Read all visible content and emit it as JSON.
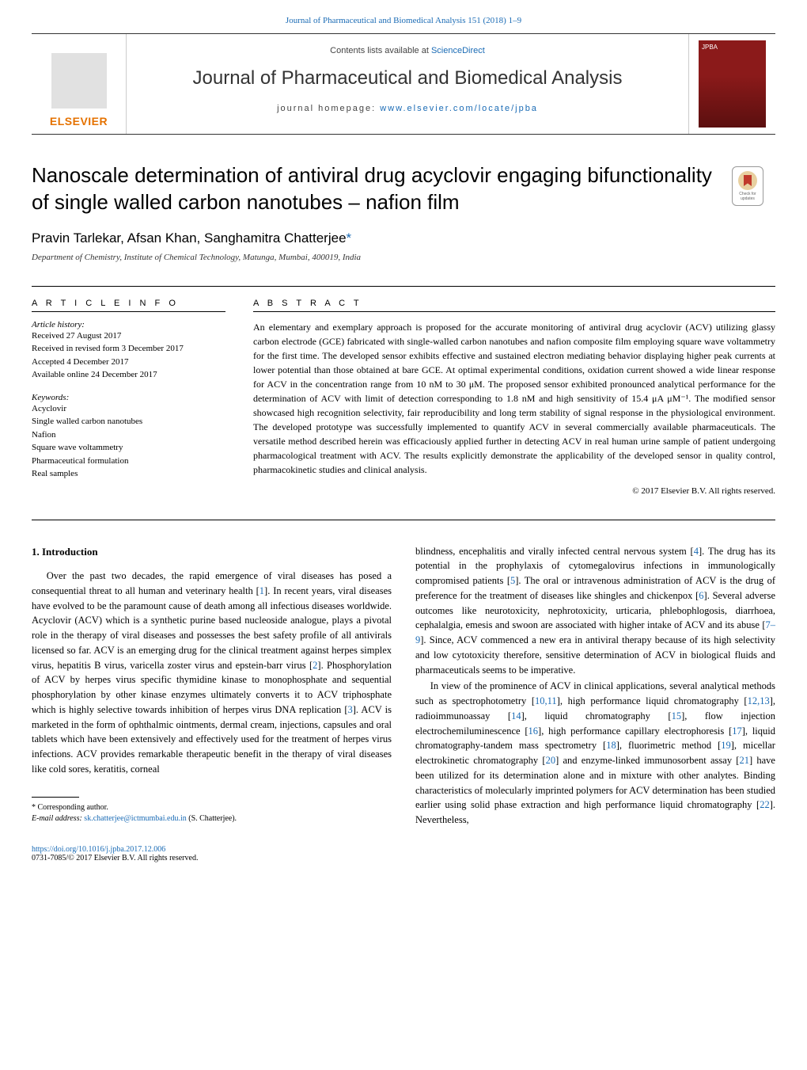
{
  "journal_ref": "Journal of Pharmaceutical and Biomedical Analysis 151 (2018) 1–9",
  "contents_prefix": "Contents lists available at ",
  "contents_link": "ScienceDirect",
  "journal_title": "Journal of Pharmaceutical and Biomedical Analysis",
  "homepage_prefix": "journal homepage: ",
  "homepage_link": "www.elsevier.com/locate/jpba",
  "publisher": "ELSEVIER",
  "checkmark_label": "Check for updates",
  "article_title": "Nanoscale determination of antiviral drug acyclovir engaging bifunctionality of single walled carbon nanotubes – nafion film",
  "authors_line": "Pravin Tarlekar, Afsan Khan, Sanghamitra Chatterjee",
  "corr_marker": "*",
  "affiliation": "Department of Chemistry, Institute of Chemical Technology, Matunga, Mumbai, 400019, India",
  "article_info_hdr": "A R T I C L E   I N F O",
  "abstract_hdr": "A B S T R A C T",
  "history_label": "Article history:",
  "history": {
    "received": "Received 27 August 2017",
    "revised": "Received in revised form 3 December 2017",
    "accepted": "Accepted 4 December 2017",
    "online": "Available online 24 December 2017"
  },
  "keywords_label": "Keywords:",
  "keywords": [
    "Acyclovir",
    "Single walled carbon nanotubes",
    "Nafion",
    "Square wave voltammetry",
    "Pharmaceutical formulation",
    "Real samples"
  ],
  "abstract": "An elementary and exemplary approach is proposed for the accurate monitoring of antiviral drug acyclovir (ACV) utilizing glassy carbon electrode (GCE) fabricated with single-walled carbon nanotubes and nafion composite film employing square wave voltammetry for the first time. The developed sensor exhibits effective and sustained electron mediating behavior displaying higher peak currents at lower potential than those obtained at bare GCE. At optimal experimental conditions, oxidation current showed a wide linear response for ACV in the concentration range from 10 nM to 30 μM. The proposed sensor exhibited pronounced analytical performance for the determination of ACV with limit of detection corresponding to 1.8 nM and high sensitivity of 15.4 μA μM⁻¹. The modified sensor showcased high recognition selectivity, fair reproducibility and long term stability of signal response in the physiological environment. The developed prototype was successfully implemented to quantify ACV in several commercially available pharmaceuticals. The versatile method described herein was efficaciously applied further in detecting ACV in real human urine sample of patient undergoing pharmacological treatment with ACV. The results explicitly demonstrate the applicability of the developed sensor in quality control, pharmacokinetic studies and clinical analysis.",
  "copyright": "© 2017 Elsevier B.V. All rights reserved.",
  "intro_heading": "1. Introduction",
  "col1_p1_a": "Over the past two decades, the rapid emergence of viral diseases has posed a consequential threat to all human and veterinary health [",
  "ref_1": "1",
  "col1_p1_b": "]. In recent years, viral diseases have evolved to be the paramount cause of death among all infectious diseases worldwide. Acyclovir (ACV) which is a synthetic purine based nucleoside analogue, plays a pivotal role in the therapy of viral diseases and possesses the best safety profile of all antivirals licensed so far. ACV is an emerging drug for the clinical treatment against herpes simplex virus, hepatitis B virus, varicella zoster virus and epstein-barr virus [",
  "ref_2": "2",
  "col1_p1_c": "]. Phosphorylation of ACV by herpes virus specific thymidine kinase to monophosphate and sequential phosphorylation by other kinase enzymes ultimately converts it to ACV triphosphate which is highly selective towards inhibition of herpes virus DNA replication [",
  "ref_3": "3",
  "col1_p1_d": "]. ACV is marketed in the form of ophthalmic ointments, dermal cream, injections, capsules and oral tablets which have been extensively and effectively used for the treatment of herpes virus infections. ACV provides remarkable therapeutic benefit in the therapy of viral diseases like cold sores, keratitis, corneal",
  "col2_p1_a": "blindness, encephalitis and virally infected central nervous system [",
  "ref_4": "4",
  "col2_p1_b": "]. The drug has its potential in the prophylaxis of cytomegalovirus infections in immunologically compromised patients [",
  "ref_5": "5",
  "col2_p1_c": "]. The oral or intravenous administration of ACV is the drug of preference for the treatment of diseases like shingles and chickenpox [",
  "ref_6": "6",
  "col2_p1_d": "]. Several adverse outcomes like neurotoxicity, nephrotoxicity, urticaria, phlebophlogosis, diarrhoea, cephalalgia, emesis and swoon are associated with higher intake of ACV and its abuse [",
  "ref_7_9": "7–9",
  "col2_p1_e": "]. Since, ACV commenced a new era in antiviral therapy because of its high selectivity and low cytotoxicity therefore, sensitive determination of ACV in biological fluids and pharmaceuticals seems to be imperative.",
  "col2_p2_a": "In view of the prominence of ACV in clinical applications, several analytical methods such as spectrophotometry [",
  "ref_10_11": "10,11",
  "col2_p2_b": "], high performance liquid chromatography [",
  "ref_12_13": "12,13",
  "col2_p2_c": "], radioimmunoassay [",
  "ref_14": "14",
  "col2_p2_d": "], liquid chromatography [",
  "ref_15": "15",
  "col2_p2_e": "], flow injection electrochemiluminescence [",
  "ref_16": "16",
  "col2_p2_f": "], high performance capillary electrophoresis [",
  "ref_17": "17",
  "col2_p2_g": "], liquid chromatography-tandem mass spectrometry [",
  "ref_18": "18",
  "col2_p2_h": "], fluorimetric method [",
  "ref_19": "19",
  "col2_p2_i": "], micellar electrokinetic chromatography [",
  "ref_20": "20",
  "col2_p2_j": "] and enzyme-linked immunosorbent assay [",
  "ref_21": "21",
  "col2_p2_k": "] have been utilized for its determination alone and in mixture with other analytes. Binding characteristics of molecularly imprinted polymers for ACV determination has been studied earlier using solid phase extraction and high performance liquid chromatography [",
  "ref_22": "22",
  "col2_p2_l": "]. Nevertheless,",
  "corr_note": "* Corresponding author.",
  "email_label": "E-mail address: ",
  "email": "sk.chatterjee@ictmumbai.edu.in",
  "email_suffix": " (S. Chatterjee).",
  "doi": "https://doi.org/10.1016/j.jpba.2017.12.006",
  "issn_line": "0731-7085/© 2017 Elsevier B.V. All rights reserved.",
  "colors": {
    "link": "#1a6bb5",
    "elsevier": "#e57200",
    "cover": "#8b1a1a"
  }
}
